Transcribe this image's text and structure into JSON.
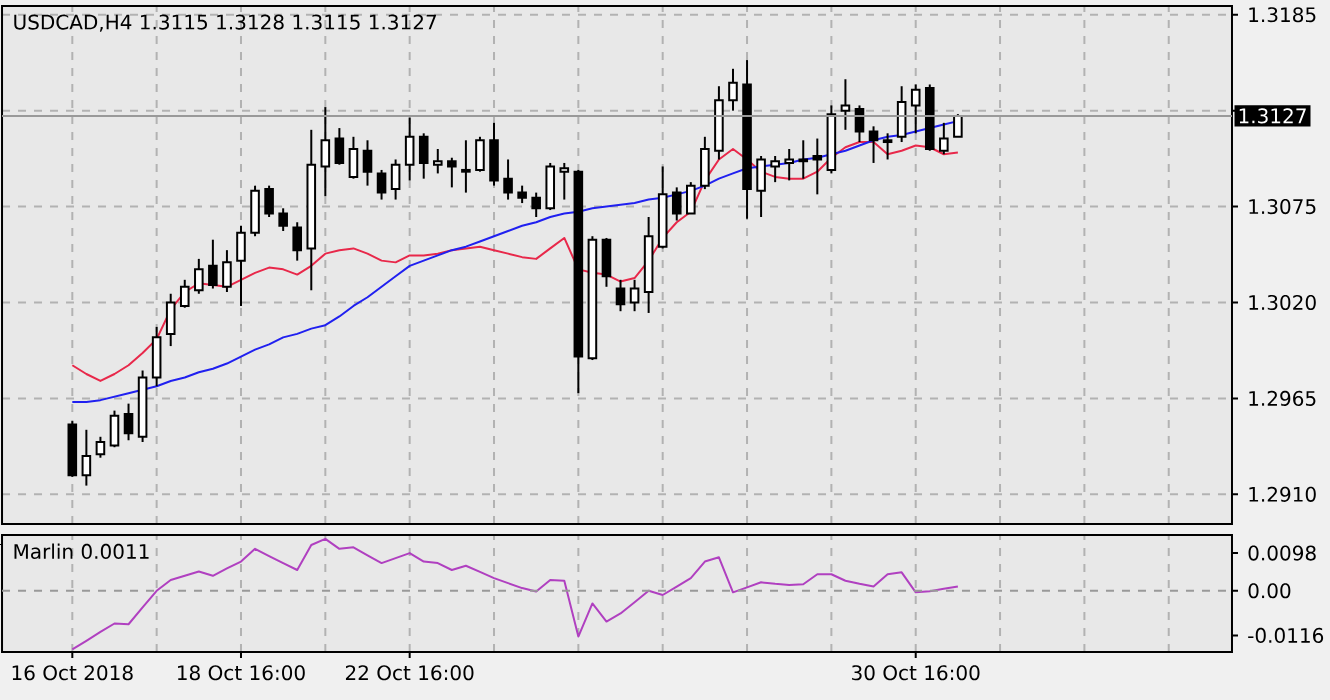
{
  "chart_data": [
    {
      "type": "candlestick",
      "title": "USDCAD,H4 1.3115 1.3128 1.3115 1.3127",
      "categories": [
        null,
        null,
        null,
        null,
        null,
        null,
        null,
        null,
        null,
        null,
        null,
        null,
        null,
        null,
        null,
        null,
        null,
        null,
        null,
        null,
        null,
        null,
        null,
        null,
        null,
        null,
        null,
        null,
        null,
        null,
        null,
        null,
        null,
        null,
        null,
        null,
        null,
        null,
        null,
        null,
        null,
        null,
        null,
        null,
        null,
        null,
        null,
        null,
        null,
        null,
        null,
        null,
        null,
        null,
        null,
        null,
        null,
        null,
        null,
        null,
        null,
        null,
        null,
        null,
        null,
        null,
        null,
        null,
        null,
        null,
        null,
        null,
        null,
        null,
        null,
        null,
        null,
        null,
        null,
        null,
        null,
        null,
        null
      ],
      "ohlc": [
        [
          1.295,
          1.2952,
          1.292,
          1.2921
        ],
        [
          1.2921,
          1.2947,
          1.2915,
          1.2932
        ],
        [
          1.2933,
          1.2943,
          1.2931,
          1.294
        ],
        [
          1.2938,
          1.2958,
          1.2937,
          1.2955
        ],
        [
          1.2956,
          1.2962,
          1.2941,
          1.2945
        ],
        [
          1.2943,
          1.2981,
          1.294,
          1.2977
        ],
        [
          1.2977,
          1.3006,
          1.2972,
          1.3
        ],
        [
          1.3002,
          1.3025,
          1.2995,
          1.302
        ],
        [
          1.3018,
          1.3033,
          1.3017,
          1.3029
        ],
        [
          1.3027,
          1.3045,
          1.3025,
          1.3039
        ],
        [
          1.3041,
          1.3056,
          1.3028,
          1.303
        ],
        [
          1.3029,
          1.305,
          1.3026,
          1.3043
        ],
        [
          1.3044,
          1.3064,
          1.3018,
          1.306
        ],
        [
          1.306,
          1.3087,
          1.3058,
          1.3084
        ],
        [
          1.3085,
          1.3087,
          1.3069,
          1.3071
        ],
        [
          1.3071,
          1.3074,
          1.3061,
          1.3064
        ],
        [
          1.3063,
          1.3066,
          1.3044,
          1.305
        ],
        [
          1.3051,
          1.3119,
          1.3027,
          1.3099
        ],
        [
          1.3098,
          1.3132,
          1.3081,
          1.3113
        ],
        [
          1.3114,
          1.312,
          1.3099,
          1.31
        ],
        [
          1.3092,
          1.3115,
          1.3091,
          1.3108
        ],
        [
          1.3107,
          1.3113,
          1.3087,
          1.3095
        ],
        [
          1.3094,
          1.3096,
          1.3079,
          1.3083
        ],
        [
          1.3085,
          1.3102,
          1.3079,
          1.3099
        ],
        [
          1.3099,
          1.3126,
          1.309,
          1.3115
        ],
        [
          1.3115,
          1.3117,
          1.3091,
          1.31
        ],
        [
          1.3099,
          1.3108,
          1.3094,
          1.3101
        ],
        [
          1.3101,
          1.3103,
          1.3086,
          1.3098
        ],
        [
          1.3096,
          1.3113,
          1.3083,
          1.3095
        ],
        [
          1.3096,
          1.3115,
          1.3095,
          1.3113
        ],
        [
          1.3113,
          1.3123,
          1.3087,
          1.309
        ],
        [
          1.3091,
          1.3102,
          1.3079,
          1.3083
        ],
        [
          1.3083,
          1.3087,
          1.3077,
          1.308
        ],
        [
          1.308,
          1.3083,
          1.3069,
          1.3074
        ],
        [
          1.3074,
          1.31,
          1.3073,
          1.3098
        ],
        [
          1.3095,
          1.31,
          1.3079,
          1.3097
        ],
        [
          1.3095,
          1.3096,
          1.2968,
          1.2989
        ],
        [
          1.2988,
          1.3058,
          1.2987,
          1.3056
        ],
        [
          1.3056,
          1.3057,
          1.3029,
          1.3035
        ],
        [
          1.3028,
          1.3033,
          1.3015,
          1.3019
        ],
        [
          1.302,
          1.3033,
          1.3015,
          1.3028
        ],
        [
          1.3026,
          1.3069,
          1.3014,
          1.3058
        ],
        [
          1.3052,
          1.3098,
          1.3051,
          1.3082
        ],
        [
          1.3083,
          1.3086,
          1.3067,
          1.3071
        ],
        [
          1.3071,
          1.3089,
          1.3071,
          1.3087
        ],
        [
          1.3087,
          1.3115,
          1.3085,
          1.3108
        ],
        [
          1.3107,
          1.3144,
          1.3102,
          1.3136
        ],
        [
          1.3136,
          1.3154,
          1.313,
          1.3146
        ],
        [
          1.3145,
          1.3159,
          1.3068,
          1.3085
        ],
        [
          1.3084,
          1.3104,
          1.3069,
          1.3102
        ],
        [
          1.3098,
          1.3104,
          1.3089,
          1.3101
        ],
        [
          1.31,
          1.3108,
          1.309,
          1.3102
        ],
        [
          1.3102,
          1.3113,
          1.3091,
          1.3101
        ],
        [
          1.3104,
          1.3114,
          1.3082,
          1.3102
        ],
        [
          1.3096,
          1.3133,
          1.3094,
          1.3128
        ],
        [
          1.313,
          1.3148,
          1.3119,
          1.3133
        ],
        [
          1.3131,
          1.3133,
          1.3112,
          1.3118
        ],
        [
          1.3118,
          1.3121,
          1.31,
          1.3113
        ],
        [
          1.3113,
          1.3117,
          1.3102,
          1.3112
        ],
        [
          1.3115,
          1.3144,
          1.3112,
          1.3135
        ],
        [
          1.3133,
          1.3145,
          1.3117,
          1.3142
        ],
        [
          1.3143,
          1.3145,
          1.3107,
          1.3108
        ],
        [
          1.3107,
          1.3123,
          1.3105,
          1.3114
        ],
        [
          1.3115,
          1.3128,
          1.3115,
          1.3127
        ],
        null,
        null,
        null,
        null,
        null,
        null,
        null,
        null,
        null,
        null,
        null,
        null,
        null,
        null,
        null,
        null,
        null,
        null,
        null
      ],
      "series": [
        {
          "type": "line",
          "color": "#e8284a",
          "values": [
            1.2984,
            1.2979,
            1.2975,
            1.2979,
            1.2984,
            1.2991,
            1.2999,
            1.3016,
            1.3026,
            1.3031,
            1.303,
            1.3029,
            1.3033,
            1.3037,
            1.304,
            1.3039,
            1.3036,
            1.3041,
            1.3048,
            1.305,
            1.3051,
            1.3048,
            1.3044,
            1.3043,
            1.3047,
            1.3047,
            1.3048,
            1.305,
            1.3051,
            1.3052,
            1.305,
            1.3048,
            1.3046,
            1.3045,
            1.3051,
            1.3057,
            1.3039,
            1.3037,
            1.3036,
            1.3032,
            1.3034,
            1.3044,
            1.3057,
            1.3066,
            1.3072,
            1.309,
            1.3102,
            1.3108,
            1.3102,
            1.3095,
            1.3092,
            1.3091,
            1.3091,
            1.3095,
            1.3103,
            1.3109,
            1.3112,
            1.3112,
            1.3105,
            1.3107,
            1.311,
            1.3109,
            1.3105,
            1.3106,
            null,
            null,
            null,
            null,
            null,
            null,
            null,
            null,
            null,
            null,
            null,
            null,
            null,
            null,
            null,
            null,
            null,
            null,
            null
          ]
        },
        {
          "type": "line",
          "color": "#2020f0",
          "values": [
            1.2963,
            1.2963,
            1.2964,
            1.2966,
            1.2968,
            1.297,
            1.2972,
            1.2975,
            1.2977,
            1.298,
            1.2982,
            1.2985,
            1.2989,
            1.2993,
            1.2996,
            1.3,
            1.3002,
            1.3005,
            1.3007,
            1.3012,
            1.3018,
            1.3023,
            1.3029,
            1.3035,
            1.3041,
            1.3044,
            1.3047,
            1.305,
            1.3052,
            1.3055,
            1.3058,
            1.3061,
            1.3064,
            1.3066,
            1.3069,
            1.3071,
            1.3072,
            1.3074,
            1.3075,
            1.3076,
            1.3077,
            1.3079,
            1.308,
            1.3082,
            1.3084,
            1.3087,
            1.3091,
            1.3094,
            1.3097,
            1.3098,
            1.3099,
            1.31,
            1.3102,
            1.3103,
            1.3105,
            1.3107,
            1.311,
            1.3113,
            1.3115,
            1.3116,
            1.3118,
            1.312,
            1.3122,
            1.3124,
            null,
            null,
            null,
            null,
            null,
            null,
            null,
            null,
            null,
            null,
            null,
            null,
            null,
            null,
            null,
            null,
            null,
            null,
            null
          ]
        }
      ],
      "ylim": [
        1.2893,
        1.319
      ],
      "yticks": [
        {
          "value": 1.291,
          "label": "1.2910"
        },
        1.2965,
        {
          "value": 1.302,
          "label": "1.3020"
        },
        1.3075,
        {
          "value": 1.313,
          "label": null
        },
        1.3185
      ],
      "ref_lines": [
        {
          "axis": "y",
          "value": 1.3127,
          "label": "1.3127"
        }
      ],
      "grid": true,
      "tick_labels": "y"
    },
    {
      "type": "line",
      "title": "Marlin 0.0011",
      "categories": [
        "16 Oct 2018",
        null,
        null,
        null,
        null,
        null,
        null,
        null,
        null,
        null,
        null,
        null,
        "18 Oct 16:00",
        null,
        null,
        null,
        null,
        null,
        null,
        null,
        null,
        null,
        null,
        null,
        "22 Oct 16:00",
        null,
        null,
        null,
        null,
        null,
        null,
        null,
        null,
        null,
        null,
        null,
        null,
        null,
        null,
        null,
        null,
        null,
        null,
        null,
        null,
        null,
        null,
        null,
        null,
        null,
        null,
        null,
        null,
        null,
        null,
        null,
        null,
        null,
        null,
        null,
        "30 Oct 16:00",
        null,
        null,
        null,
        null,
        null,
        null,
        null,
        null,
        null,
        null,
        null,
        null,
        null,
        null,
        null,
        null,
        null,
        null,
        null,
        null,
        null,
        null
      ],
      "series": [
        {
          "color": "#b040c0",
          "values": [
            -0.0152,
            -0.013,
            -0.0107,
            -0.0085,
            -0.0087,
            -0.0043,
            0.0,
            0.0028,
            0.0039,
            0.005,
            0.0039,
            0.0058,
            0.0076,
            0.0109,
            0.009,
            0.0072,
            0.0054,
            0.0119,
            0.0135,
            0.0109,
            0.0113,
            0.0092,
            0.0072,
            0.0085,
            0.0098,
            0.0076,
            0.0072,
            0.0054,
            0.0065,
            0.0049,
            0.0033,
            0.002,
            0.0007,
            -0.0002,
            0.0028,
            0.0026,
            -0.0119,
            -0.0033,
            -0.008,
            -0.0059,
            -0.003,
            0.0,
            -0.0011,
            0.0011,
            0.0033,
            0.0076,
            0.0087,
            -0.0004,
            0.0009,
            0.0022,
            0.0018,
            0.0015,
            0.0017,
            0.0043,
            0.0043,
            0.0026,
            0.0018,
            0.0011,
            0.0043,
            0.0048,
            -0.0004,
            -0.0001,
            0.0005,
            0.0011,
            null,
            null,
            null,
            null,
            null,
            null,
            null,
            null,
            null,
            null,
            null,
            null,
            null,
            null,
            null,
            null,
            null,
            null,
            null
          ]
        }
      ],
      "ylim": [
        -0.0159,
        0.0145
      ],
      "yticks": [
        -0.0116,
        {
          "value": 0,
          "label": "0.00"
        },
        0.0098
      ],
      "ref_lines": [
        {
          "axis": "y",
          "value": 0,
          "line_style": "dashed"
        }
      ],
      "grid": "x"
    }
  ]
}
